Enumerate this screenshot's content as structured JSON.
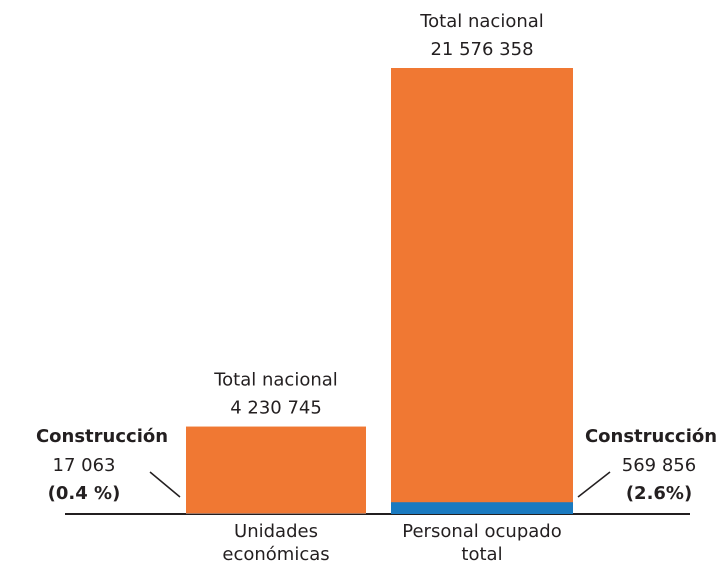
{
  "chart_data": {
    "type": "bar",
    "categories": [
      "Unidades económicas",
      "Personal ocupado total"
    ],
    "series": [
      {
        "name": "Total nacional",
        "color": "#f07833",
        "values": [
          4230745,
          21576358
        ],
        "value_labels": [
          "4 230 745",
          "21 576 358"
        ]
      },
      {
        "name": "Construcción",
        "color": "#1a7ac0",
        "values": [
          17063,
          569856
        ],
        "value_labels": [
          "17 063",
          "569 856"
        ]
      }
    ],
    "shares": {
      "values": [
        0.4,
        2.6
      ],
      "value_labels": [
        "(0.4 %)",
        "(2.6%)"
      ]
    }
  }
}
